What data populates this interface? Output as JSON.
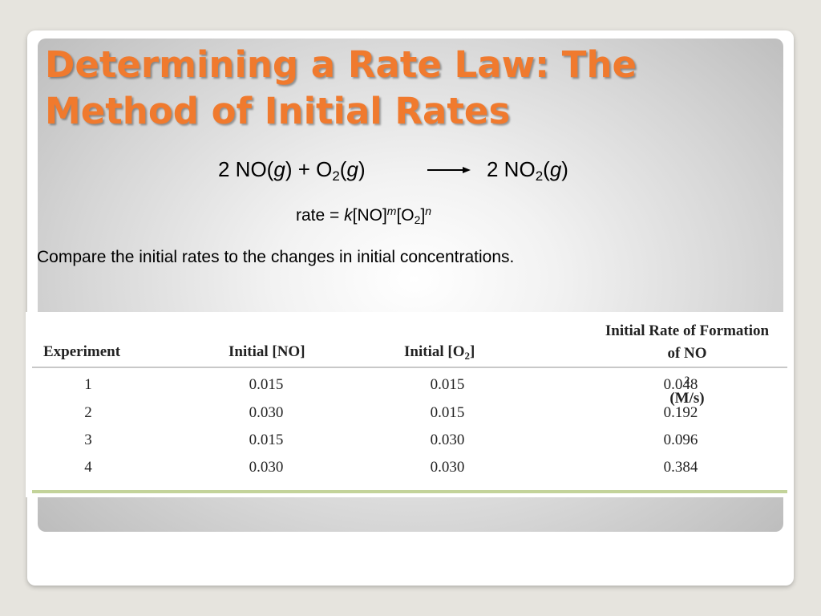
{
  "slide": {
    "title_line1": "Determining a Rate Law: The",
    "title_line2": "Method of Initial Rates",
    "equation": {
      "left_coef": "2 NO(",
      "left_g1": "g",
      "left_mid": ") + O",
      "left_sub": "2",
      "left_open": "(",
      "left_g2": "g",
      "left_close": ")",
      "right_coef": "2 NO",
      "right_sub": "2",
      "right_open": "(",
      "right_g": "g",
      "right_close": ")"
    },
    "rate_law": {
      "prefix": "rate = ",
      "k": "k",
      "no": "[NO]",
      "m": "m",
      "o2_open": "[O",
      "o2_sub": "2",
      "o2_close": "]",
      "n": "n"
    },
    "instruction": "Compare the initial rates to the changes in initial concentrations."
  },
  "table": {
    "headers": {
      "experiment": "Experiment",
      "initial_no": "Initial [NO]",
      "initial_o2_prefix": "Initial [O",
      "initial_o2_sub": "2",
      "initial_o2_suffix": "]",
      "rate_line1": "Initial Rate of Formation",
      "rate_line2_prefix": "of NO",
      "rate_line2_sub": "2",
      "rate_line2_suffix": " (M/s)"
    },
    "rows": [
      {
        "experiment": "1",
        "no": "0.015",
        "o2": "0.015",
        "rate": "0.048"
      },
      {
        "experiment": "2",
        "no": "0.030",
        "o2": "0.015",
        "rate": "0.192"
      },
      {
        "experiment": "3",
        "no": "0.015",
        "o2": "0.030",
        "rate": "0.096"
      },
      {
        "experiment": "4",
        "no": "0.030",
        "o2": "0.030",
        "rate": "0.384"
      }
    ]
  },
  "colors": {
    "title": "#f07a2e",
    "table_rule": "#c3d39a"
  }
}
